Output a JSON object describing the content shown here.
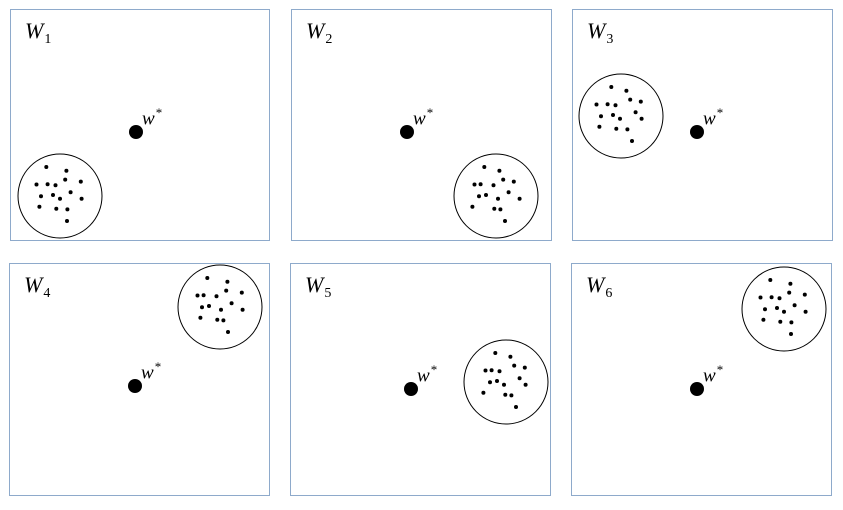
{
  "diagram": {
    "optimum_label": "w",
    "optimum_superscript": "*",
    "panels": [
      {
        "title": "W",
        "subscript": "1"
      },
      {
        "title": "W",
        "subscript": "2"
      },
      {
        "title": "W",
        "subscript": "3"
      },
      {
        "title": "W",
        "subscript": "4"
      },
      {
        "title": "W",
        "subscript": "5"
      },
      {
        "title": "W",
        "subscript": "6"
      }
    ]
  }
}
